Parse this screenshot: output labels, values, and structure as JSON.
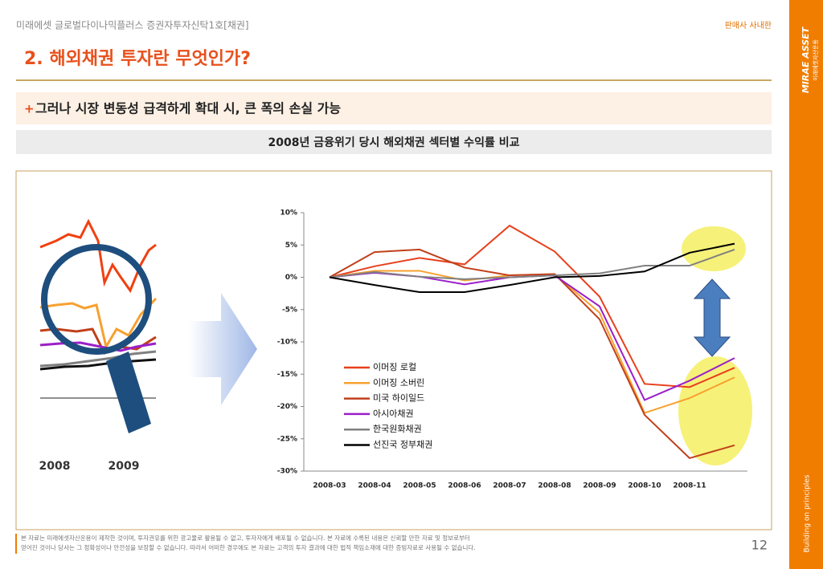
{
  "header": {
    "fund_name": "미래에셋 글로벌다이나믹플러스 증권자투자신탁1호[채권]",
    "notice": "판매사 사내한",
    "title": "2. 해외채권 투자란 무엇인가?"
  },
  "subtitle": {
    "marker": "+",
    "text": "그러나 시장 변동성 급격하게 확대 시, 큰 폭의 손실 가능"
  },
  "section_title": "2008년 금융위기 당시 해외채권 섹터별 수익률 비교",
  "illustration": {
    "labels": [
      "2008",
      "2009"
    ]
  },
  "chart_data": {
    "type": "line",
    "categories": [
      "2008-03",
      "2008-04",
      "2008-05",
      "2008-06",
      "2008-07",
      "2008-08",
      "2008-09",
      "2008-10",
      "2008-11",
      null
    ],
    "series": [
      {
        "name": "이머징 로컬",
        "color": "#e8401c",
        "values": [
          0,
          1.7,
          3.0,
          2.0,
          8.0,
          4.0,
          -3.0,
          -16.5,
          -17.0,
          -14.0
        ]
      },
      {
        "name": "이머징 소버린",
        "color": "#f7a030",
        "values": [
          0,
          1.0,
          1.0,
          -0.5,
          0.3,
          0.5,
          -5.5,
          -21.0,
          -18.7,
          -15.5
        ]
      },
      {
        "name": "미국 하이일드",
        "color": "#c0401a",
        "values": [
          0,
          3.9,
          4.3,
          1.5,
          0.3,
          0.5,
          -6.5,
          -21.3,
          -28.0,
          -26.0
        ]
      },
      {
        "name": "아시아채권",
        "color": "#9b1fc8",
        "values": [
          0,
          0.7,
          0.1,
          -1.1,
          0,
          0.3,
          -4.5,
          -19.0,
          -16.0,
          -12.5
        ]
      },
      {
        "name": "한국원화채권",
        "color": "#808080",
        "values": [
          0,
          0.8,
          0.1,
          -0.3,
          0,
          0.3,
          0.6,
          1.8,
          1.8,
          4.3
        ]
      },
      {
        "name": "선진국 정부채권",
        "color": "#000000",
        "values": [
          0,
          -1.2,
          -2.3,
          -2.3,
          -1.2,
          0,
          0.2,
          0.9,
          3.8,
          5.2
        ]
      }
    ],
    "ylim": [
      -30,
      10
    ],
    "yticks": [
      {
        "value": 10,
        "label": "10%"
      },
      {
        "value": 5,
        "label": "5%"
      },
      {
        "value": 0,
        "label": "0%"
      },
      {
        "value": -5,
        "label": "-5%"
      },
      {
        "value": -10,
        "label": "-10%"
      },
      {
        "value": -15,
        "label": "-15%"
      },
      {
        "value": -20,
        "label": "-20%"
      },
      {
        "value": -25,
        "label": "-25%"
      },
      {
        "value": -30,
        "label": "-30%"
      }
    ],
    "legend": "lower-left"
  },
  "footer": {
    "disclaimer": [
      "본 자료는 미래에셋자산운용이 제작한 것이며, 투자권유를 위한 광고물로 활용될 수 없고, 투자자에게 배포될 수 없습니다. 본 자료에 수록된 내용은 신뢰할 만한 자료 및 정보로부터",
      "얻어진 것이나 당사는 그 정확성이나 안전성을 보장할 수 없습니다. 따라서 어떠한 경우에도 본 자료는 고객의 투자 결과에 대한 법적 책임소재에 대한 증빙자료로 사용될 수 없습니다."
    ],
    "page": "12"
  },
  "sidebar": {
    "brand": "MIRAE ASSET",
    "brand_korean": "미래에셋자산운용",
    "slogan": "Building on principles"
  }
}
